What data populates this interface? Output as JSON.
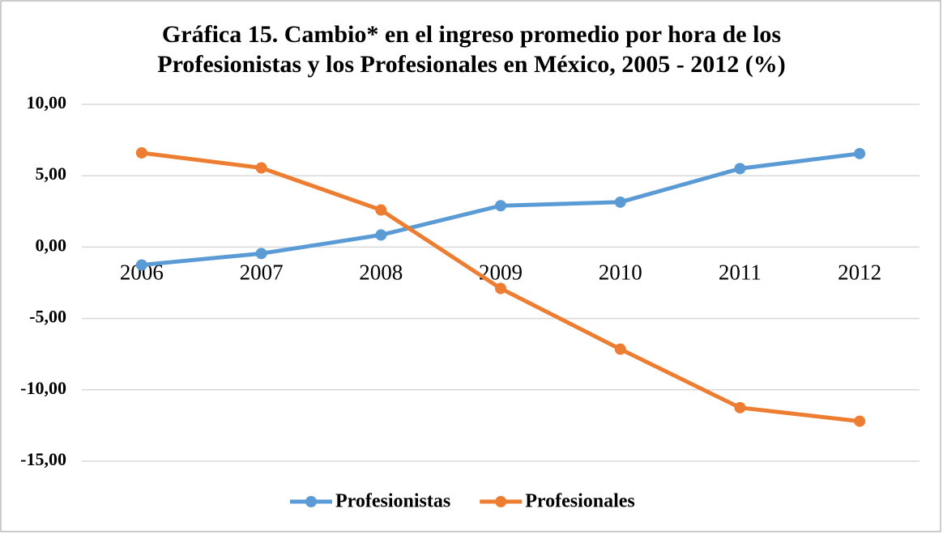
{
  "chart_data": {
    "type": "line",
    "title": [
      "Gráfica 15. Cambio* en el ingreso promedio por hora de los",
      "Profesionistas y los Profesionales en México, 2005 - 2012 (%)"
    ],
    "categories": [
      "2006",
      "2007",
      "2008",
      "2009",
      "2010",
      "2011",
      "2012"
    ],
    "series": [
      {
        "name": "Profesionistas",
        "color": "#5b9bd5",
        "values": [
          -1.25,
          -0.45,
          0.85,
          2.9,
          3.15,
          5.5,
          6.55
        ]
      },
      {
        "name": "Profesionales",
        "color": "#ed7d31",
        "values": [
          6.6,
          5.55,
          2.6,
          -2.9,
          -7.15,
          -11.25,
          -12.2
        ]
      }
    ],
    "ylim": [
      -15,
      10
    ],
    "yticks": [
      {
        "value": -15,
        "label": "-15,00"
      },
      {
        "value": -10,
        "label": "-10,00"
      },
      {
        "value": -5,
        "label": "-5,00"
      },
      {
        "value": 0,
        "label": "0,00"
      },
      {
        "value": 5,
        "label": "5,00"
      },
      {
        "value": 10,
        "label": "10,00"
      }
    ],
    "grid": true,
    "legend": "bottom"
  }
}
